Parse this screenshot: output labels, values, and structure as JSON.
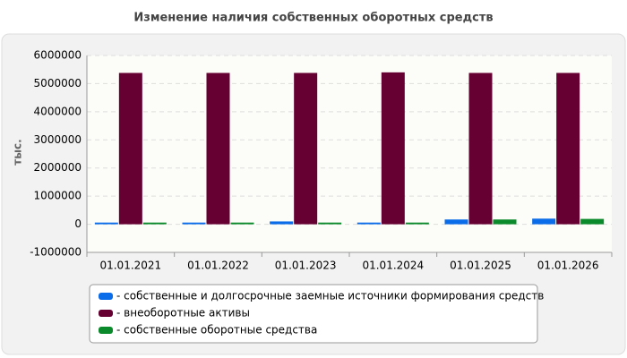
{
  "chart_data": {
    "type": "bar",
    "title": "Изменение наличия собственных оборотных средств",
    "y_label": "тыс.",
    "categories": [
      "01.01.2021",
      "01.01.2022",
      "01.01.2023",
      "01.01.2024",
      "01.01.2025",
      "01.01.2026"
    ],
    "series": [
      {
        "name": "- собственные и долгосрочные заемные источники формирования средств",
        "color": "#0a6ce8",
        "values": [
          60000,
          60000,
          100000,
          60000,
          170000,
          200000
        ]
      },
      {
        "name": "- внеоборотные активы",
        "color": "#660033",
        "values": [
          5380000,
          5380000,
          5380000,
          5400000,
          5380000,
          5380000
        ]
      },
      {
        "name": "- собственные оборотные средства",
        "color": "#0a8a2a",
        "values": [
          60000,
          60000,
          60000,
          60000,
          170000,
          190000
        ]
      }
    ],
    "ylim": [
      -1000000,
      6000000
    ],
    "yticks": [
      -1000000,
      0,
      1000000,
      2000000,
      3000000,
      4000000,
      5000000,
      6000000
    ],
    "grid": true
  }
}
